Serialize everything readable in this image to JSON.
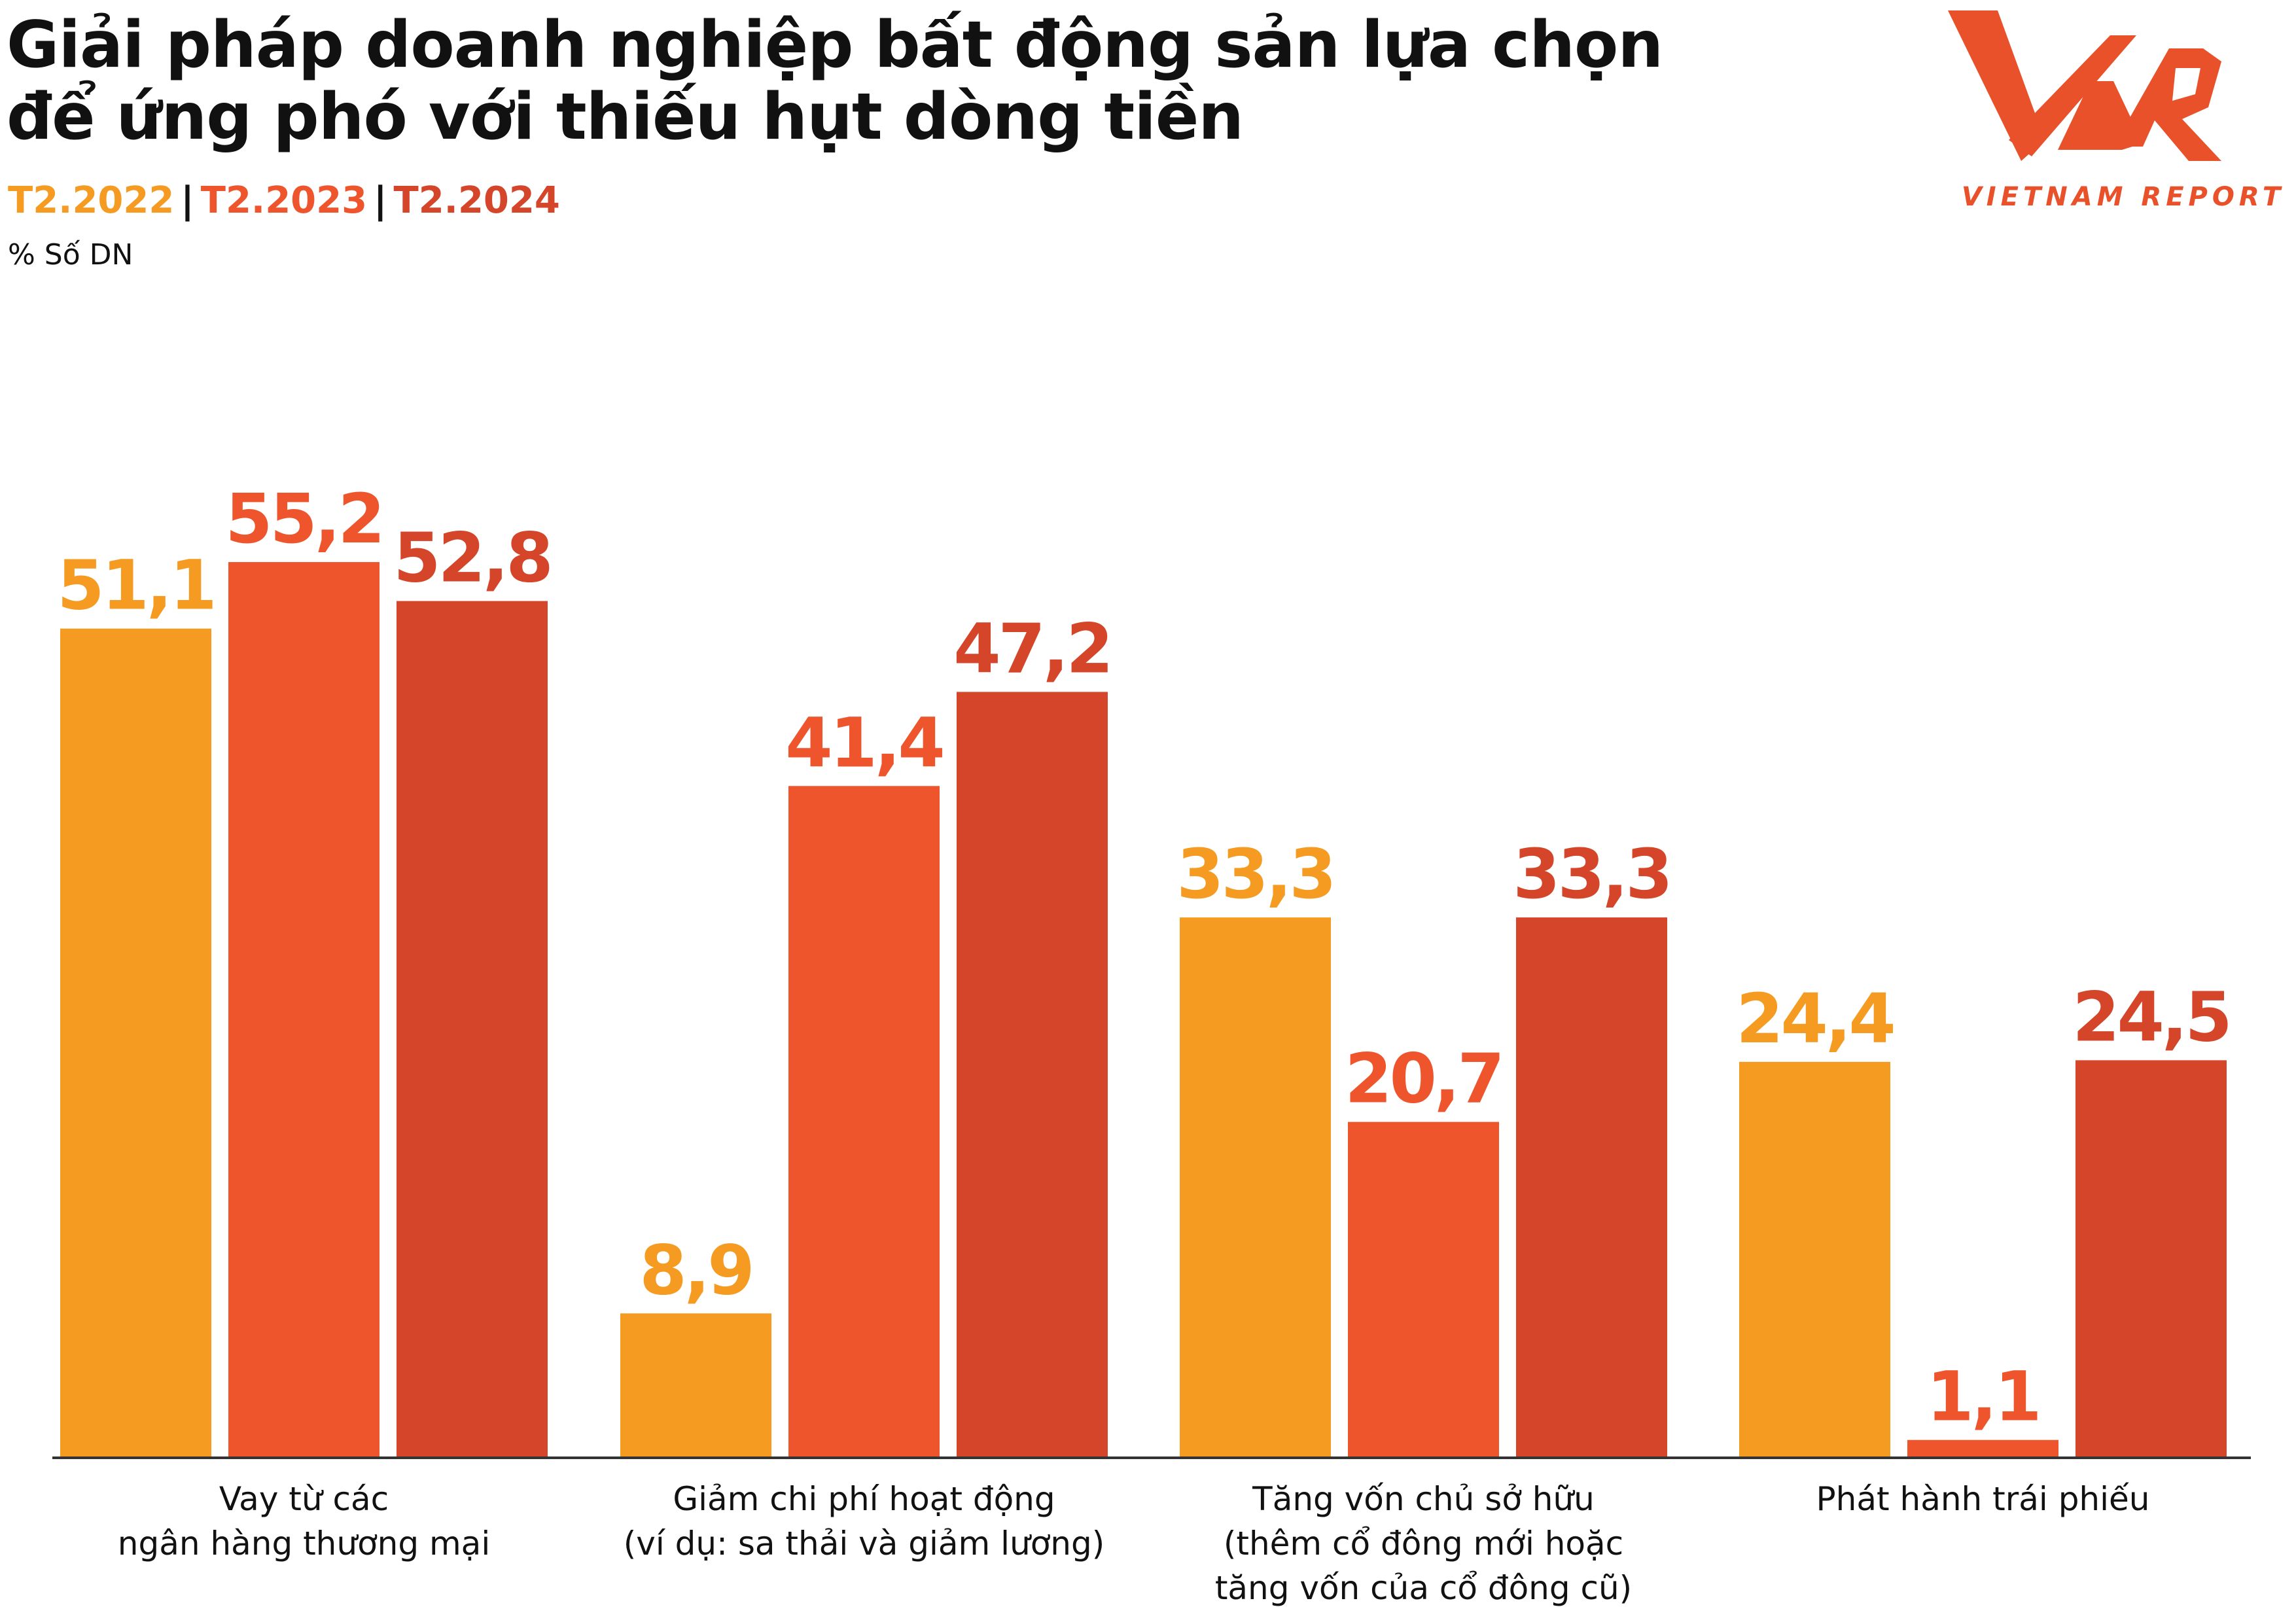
{
  "title": {
    "line1": "Giải pháp doanh nghiệp bất động sản lựa chọn",
    "line2": "để ứng phó với thiếu hụt dòng tiền"
  },
  "legend": {
    "items": [
      {
        "label": "T2.2022",
        "color": "#f59b22"
      },
      {
        "label": "T2.2023",
        "color": "#ef552d"
      },
      {
        "label": "T2.2024",
        "color": "#d4452a"
      }
    ],
    "separator": "|"
  },
  "unit_label": "% Số DN",
  "logo": {
    "mark": "VNR",
    "caption": "VIETNAM REPORT",
    "color": "#e8512a"
  },
  "chart_data": {
    "type": "bar",
    "title": "Giải pháp doanh nghiệp bất động sản lựa chọn để ứng phó với thiếu hụt dòng tiền",
    "ylabel": "% Số DN",
    "xlabel": "",
    "ylim": [
      0,
      60
    ],
    "grid": false,
    "legend_position": "top-left",
    "categories": [
      [
        "Vay từ các",
        "ngân hàng thương mại"
      ],
      [
        "Giảm chi phí hoạt động",
        "(ví dụ: sa thải và giảm lương)"
      ],
      [
        "Tăng vốn chủ sở hữu",
        "(thêm cổ đông mới hoặc",
        "tăng vốn của cổ đông cũ)"
      ],
      [
        "Phát hành trái phiếu"
      ]
    ],
    "series": [
      {
        "name": "T2.2022",
        "color": "#f59b22",
        "values": [
          51.1,
          8.9,
          33.3,
          24.4
        ],
        "labels": [
          "51,1",
          "8,9",
          "33,3",
          "24,4"
        ]
      },
      {
        "name": "T2.2023",
        "color": "#ef552d",
        "values": [
          55.2,
          41.4,
          20.7,
          1.1
        ],
        "labels": [
          "55,2",
          "41,4",
          "20,7",
          "1,1"
        ]
      },
      {
        "name": "T2.2024",
        "color": "#d4452a",
        "values": [
          52.8,
          47.2,
          33.3,
          24.5
        ],
        "labels": [
          "52,8",
          "47,2",
          "33,3",
          "24,5"
        ]
      }
    ]
  }
}
